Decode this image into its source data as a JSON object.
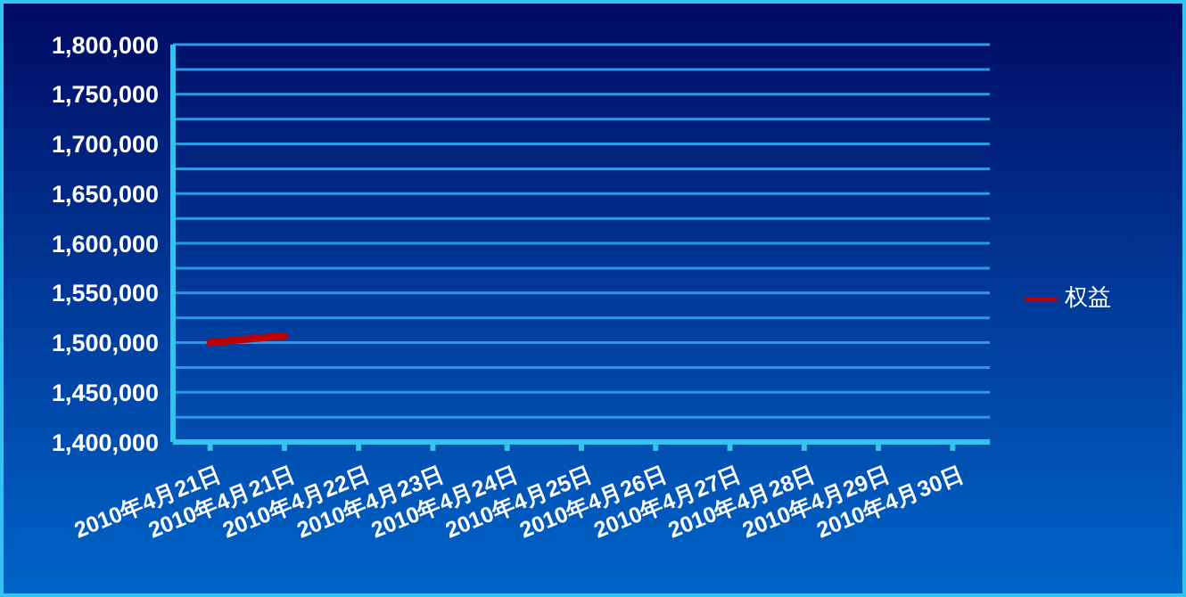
{
  "chart_data": {
    "type": "line",
    "categories": [
      "2010年4月21日",
      "2010年4月21日",
      "2010年4月22日",
      "2010年4月23日",
      "2010年4月24日",
      "2010年4月25日",
      "2010年4月26日",
      "2010年4月27日",
      "2010年4月28日",
      "2010年4月29日",
      "2010年4月30日"
    ],
    "series": [
      {
        "name": "权益",
        "color": "#c00000",
        "values": [
          1500000,
          1507000,
          null,
          null,
          null,
          null,
          null,
          null,
          null,
          null,
          null
        ]
      }
    ],
    "ylim": [
      1400000,
      1800000
    ],
    "yticks": [
      {
        "value": 1400000,
        "label": "1,400,000"
      },
      {
        "value": 1425000,
        "label": null
      },
      {
        "value": 1450000,
        "label": "1,450,000"
      },
      {
        "value": 1475000,
        "label": null
      },
      {
        "value": 1500000,
        "label": "1,500,000"
      },
      {
        "value": 1525000,
        "label": null
      },
      {
        "value": 1550000,
        "label": "1,550,000"
      },
      {
        "value": 1575000,
        "label": null
      },
      {
        "value": 1600000,
        "label": "1,600,000"
      },
      {
        "value": 1625000,
        "label": null
      },
      {
        "value": 1650000,
        "label": "1,650,000"
      },
      {
        "value": 1675000,
        "label": null
      },
      {
        "value": 1700000,
        "label": "1,700,000"
      },
      {
        "value": 1725000,
        "label": null
      },
      {
        "value": 1750000,
        "label": "1,750,000"
      },
      {
        "value": 1775000,
        "label": null
      },
      {
        "value": 1800000,
        "label": "1,800,000"
      }
    ],
    "grid": "y",
    "legend": "right"
  }
}
